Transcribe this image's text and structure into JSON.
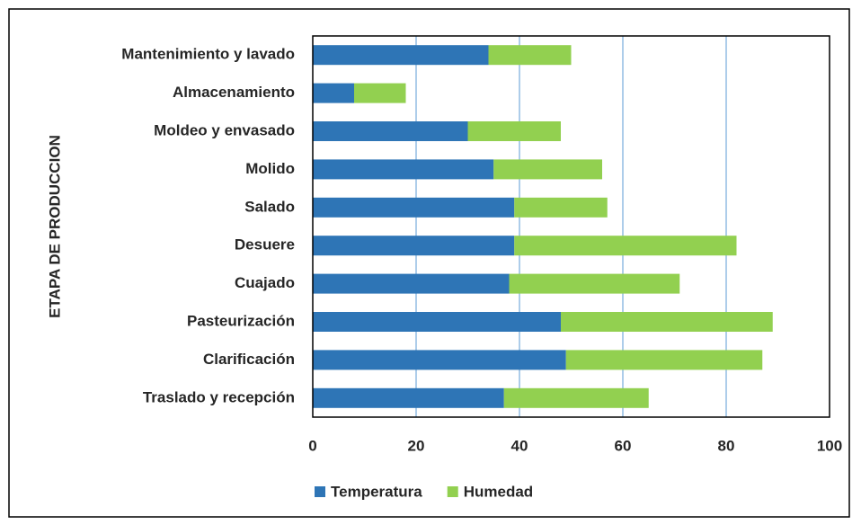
{
  "chart_data": {
    "type": "stacked_barh",
    "ylabel": "ETAPA DE PRODUCCION",
    "categories": [
      "Mantenimiento y lavado",
      "Almacenamiento",
      "Moldeo y envasado",
      "Molido",
      "Salado",
      "Desuere",
      "Cuajado",
      "Pasteurización",
      "Clarificación",
      "Traslado y recepción"
    ],
    "series": [
      {
        "name": "Temperatura",
        "color": "#2e75b6",
        "values": [
          34,
          8,
          30,
          35,
          39,
          39,
          38,
          48,
          49,
          37
        ]
      },
      {
        "name": "Humedad",
        "color": "#92d050",
        "values": [
          16,
          10,
          18,
          21,
          18,
          43,
          33,
          41,
          38,
          28
        ]
      }
    ],
    "xlim": [
      0,
      100
    ],
    "xticks": [
      0,
      20,
      40,
      60,
      80,
      100
    ],
    "grid": true,
    "grid_color": "#5b9bd5",
    "legend": "bottom"
  }
}
